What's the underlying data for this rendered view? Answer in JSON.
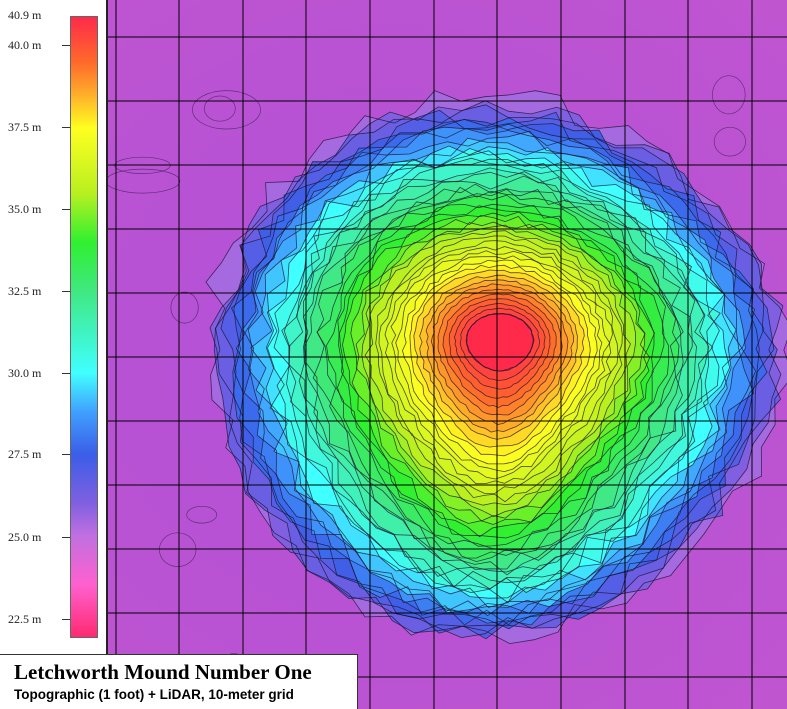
{
  "title": "Letchworth Mound Number One",
  "subtitle": "Topographic (1 foot) + LiDAR, 10-meter grid",
  "legend": {
    "max_label": "40.9 m",
    "labels": [
      "40.0 m",
      "37.5 m",
      "35.0 m",
      "32.5 m",
      "30.0 m",
      "27.5 m",
      "25.0 m",
      "22.5 m"
    ],
    "values": [
      40.0,
      37.5,
      35.0,
      32.5,
      30.0,
      27.5,
      25.0,
      22.5
    ],
    "min_value": 21.9,
    "max_value": 40.9,
    "color_stops": [
      {
        "value": 40.9,
        "color": "#ff2a4a"
      },
      {
        "value": 39.5,
        "color": "#ff6a2a"
      },
      {
        "value": 38.5,
        "color": "#ffb02a"
      },
      {
        "value": 37.5,
        "color": "#ffff20"
      },
      {
        "value": 35.5,
        "color": "#b8f020"
      },
      {
        "value": 34.0,
        "color": "#30f030"
      },
      {
        "value": 32.5,
        "color": "#40e880"
      },
      {
        "value": 30.0,
        "color": "#40ffff"
      },
      {
        "value": 28.8,
        "color": "#40a0ff"
      },
      {
        "value": 27.5,
        "color": "#3a5ee8"
      },
      {
        "value": 26.0,
        "color": "#8060e0"
      },
      {
        "value": 25.0,
        "color": "#c070e0"
      },
      {
        "value": 23.5,
        "color": "#ff60d0"
      },
      {
        "value": 21.9,
        "color": "#ff2a70"
      }
    ]
  },
  "grid": {
    "spacing_meters": 10
  },
  "colors": {
    "ground": "#b04fd0",
    "contour": "#1a1030",
    "grid_line": "#000000"
  }
}
